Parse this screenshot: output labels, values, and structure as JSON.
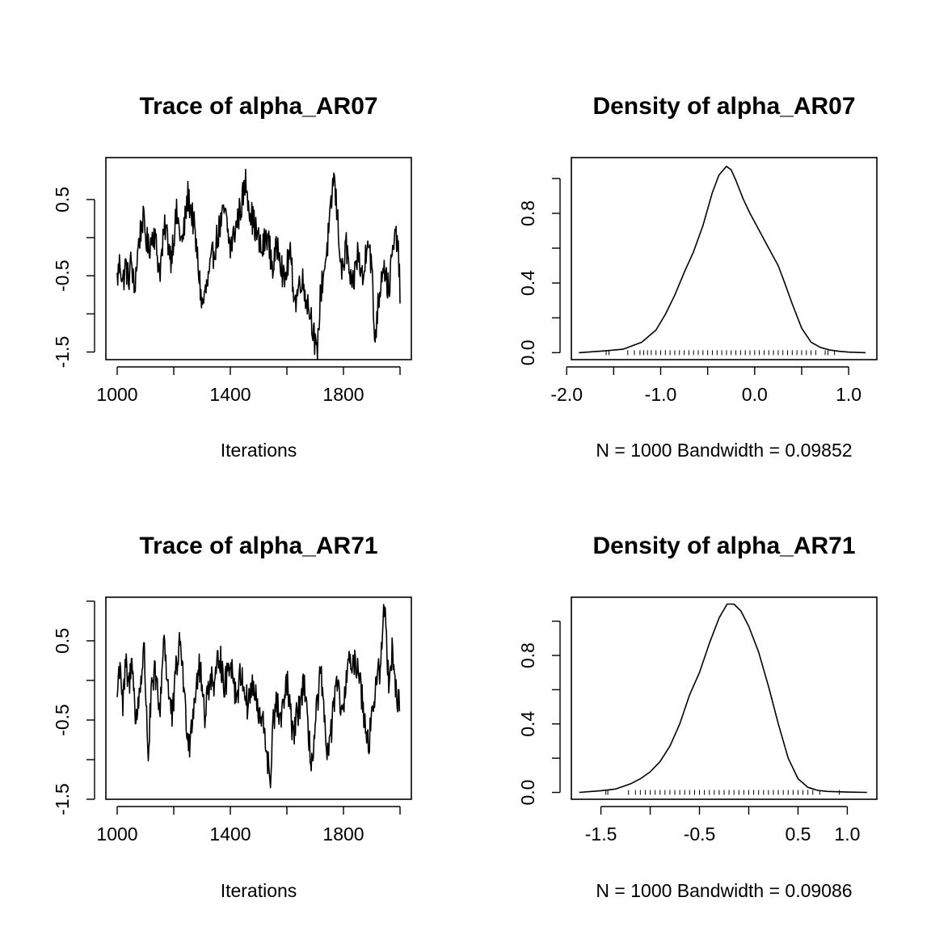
{
  "chart_data": [
    {
      "type": "line",
      "title": "Trace of alpha_AR07",
      "xlabel": "Iterations",
      "ylabel": "",
      "xlim": [
        960,
        2040
      ],
      "ylim": [
        -1.6,
        1.05
      ],
      "xticks": [
        1000,
        1200,
        1400,
        1600,
        1800,
        2000
      ],
      "xtick_labels": [
        "1000",
        "",
        "1400",
        "",
        "1800",
        ""
      ],
      "yticks": [
        -1.5,
        -1.0,
        -0.5,
        0.0,
        0.5
      ],
      "ytick_labels": [
        "-1.5",
        "",
        "-0.5",
        "",
        "0.5"
      ],
      "anchors": [
        [
          1000,
          -0.55
        ],
        [
          1010,
          -0.3
        ],
        [
          1020,
          -0.6
        ],
        [
          1030,
          -0.35
        ],
        [
          1040,
          -0.55
        ],
        [
          1050,
          -0.3
        ],
        [
          1060,
          -0.7
        ],
        [
          1075,
          -0.1
        ],
        [
          1090,
          0.25
        ],
        [
          1110,
          -0.15
        ],
        [
          1130,
          0.1
        ],
        [
          1150,
          -0.45
        ],
        [
          1170,
          0.15
        ],
        [
          1190,
          -0.25
        ],
        [
          1210,
          0.3
        ],
        [
          1230,
          -0.1
        ],
        [
          1250,
          0.55
        ],
        [
          1270,
          0.2
        ],
        [
          1290,
          -0.5
        ],
        [
          1300,
          -0.9
        ],
        [
          1320,
          -0.6
        ],
        [
          1340,
          -0.2
        ],
        [
          1360,
          0.1
        ],
        [
          1380,
          0.35
        ],
        [
          1400,
          -0.15
        ],
        [
          1420,
          0.15
        ],
        [
          1440,
          0.45
        ],
        [
          1455,
          0.75
        ],
        [
          1470,
          0.35
        ],
        [
          1490,
          0.1
        ],
        [
          1510,
          -0.2
        ],
        [
          1530,
          0.05
        ],
        [
          1550,
          -0.4
        ],
        [
          1570,
          -0.05
        ],
        [
          1590,
          -0.6
        ],
        [
          1610,
          -0.2
        ],
        [
          1630,
          -0.85
        ],
        [
          1650,
          -0.5
        ],
        [
          1670,
          -0.8
        ],
        [
          1690,
          -1.1
        ],
        [
          1705,
          -1.6
        ],
        [
          1720,
          -0.7
        ],
        [
          1740,
          -0.2
        ],
        [
          1755,
          0.3
        ],
        [
          1765,
          0.85
        ],
        [
          1780,
          0.2
        ],
        [
          1795,
          -0.5
        ],
        [
          1810,
          -0.1
        ],
        [
          1830,
          -0.75
        ],
        [
          1850,
          -0.2
        ],
        [
          1870,
          -0.6
        ],
        [
          1885,
          0.1
        ],
        [
          1900,
          -0.4
        ],
        [
          1910,
          -1.35
        ],
        [
          1925,
          -0.8
        ],
        [
          1940,
          -0.3
        ],
        [
          1960,
          -0.7
        ],
        [
          1975,
          -0.15
        ],
        [
          1990,
          0.05
        ],
        [
          2000,
          -0.7
        ]
      ]
    },
    {
      "type": "line",
      "title": "Density of alpha_AR07",
      "xlabel": "N = 1000   Bandwidth = 0.09852",
      "ylabel": "",
      "xlim": [
        -1.95,
        1.3
      ],
      "ylim": [
        -0.04,
        1.12
      ],
      "xticks": [
        -2.0,
        -1.5,
        -1.0,
        -0.5,
        0.0,
        0.5,
        1.0
      ],
      "xtick_labels": [
        "-2.0",
        "",
        "-1.0",
        "",
        "0.0",
        "",
        "1.0"
      ],
      "yticks": [
        0.0,
        0.2,
        0.4,
        0.6,
        0.8,
        1.0
      ],
      "ytick_labels": [
        "0.0",
        "",
        "0.4",
        "",
        "0.8",
        ""
      ],
      "x": [
        -1.87,
        -1.6,
        -1.4,
        -1.2,
        -1.05,
        -0.95,
        -0.85,
        -0.75,
        -0.65,
        -0.55,
        -0.45,
        -0.38,
        -0.3,
        -0.25,
        -0.2,
        -0.12,
        -0.05,
        0.05,
        0.15,
        0.25,
        0.32,
        0.4,
        0.5,
        0.6,
        0.7,
        0.8,
        0.9,
        1.0,
        1.18
      ],
      "y": [
        0.0,
        0.01,
        0.02,
        0.06,
        0.13,
        0.22,
        0.33,
        0.46,
        0.58,
        0.73,
        0.92,
        1.02,
        1.07,
        1.05,
        0.99,
        0.88,
        0.8,
        0.7,
        0.6,
        0.5,
        0.4,
        0.28,
        0.14,
        0.06,
        0.03,
        0.015,
        0.008,
        0.003,
        0.0
      ],
      "rug_x": [
        -1.58,
        -1.55,
        -1.35,
        -1.28,
        -1.22,
        -1.18,
        -1.14,
        -1.1,
        -1.05,
        -1.0,
        -0.95,
        -0.9,
        -0.85,
        -0.8,
        -0.75,
        -0.7,
        -0.65,
        -0.6,
        -0.55,
        -0.5,
        -0.45,
        -0.4,
        -0.35,
        -0.3,
        -0.25,
        -0.2,
        -0.15,
        -0.1,
        -0.05,
        0.0,
        0.05,
        0.1,
        0.15,
        0.2,
        0.25,
        0.3,
        0.35,
        0.4,
        0.45,
        0.5,
        0.55,
        0.6,
        0.65,
        0.75,
        0.78,
        0.85
      ]
    },
    {
      "type": "line",
      "title": "Trace of alpha_AR71",
      "xlabel": "Iterations",
      "ylabel": "",
      "xlim": [
        960,
        2040
      ],
      "ylim": [
        -1.5,
        1.05
      ],
      "xticks": [
        1000,
        1200,
        1400,
        1600,
        1800,
        2000
      ],
      "xtick_labels": [
        "1000",
        "",
        "1400",
        "",
        "1800",
        ""
      ],
      "yticks": [
        -1.5,
        -1.0,
        -0.5,
        0.0,
        0.5,
        1.0
      ],
      "ytick_labels": [
        "-1.5",
        "",
        "-0.5",
        "",
        "0.5",
        ""
      ],
      "anchors": [
        [
          1000,
          -0.2
        ],
        [
          1010,
          0.3
        ],
        [
          1020,
          -0.35
        ],
        [
          1030,
          0.2
        ],
        [
          1040,
          -0.1
        ],
        [
          1055,
          0.3
        ],
        [
          1065,
          -0.6
        ],
        [
          1080,
          -0.1
        ],
        [
          1095,
          0.4
        ],
        [
          1110,
          -0.95
        ],
        [
          1120,
          -0.2
        ],
        [
          1135,
          0.1
        ],
        [
          1150,
          -0.45
        ],
        [
          1165,
          0.6
        ],
        [
          1180,
          -0.1
        ],
        [
          1195,
          -0.5
        ],
        [
          1210,
          0.2
        ],
        [
          1225,
          0.5
        ],
        [
          1240,
          -0.35
        ],
        [
          1255,
          -0.8
        ],
        [
          1270,
          -0.3
        ],
        [
          1290,
          0.2
        ],
        [
          1310,
          -0.4
        ],
        [
          1330,
          0.1
        ],
        [
          1345,
          -0.15
        ],
        [
          1360,
          0.4
        ],
        [
          1380,
          -0.1
        ],
        [
          1400,
          0.3
        ],
        [
          1420,
          -0.2
        ],
        [
          1440,
          0.1
        ],
        [
          1460,
          -0.3
        ],
        [
          1480,
          -0.05
        ],
        [
          1500,
          -0.45
        ],
        [
          1520,
          -0.6
        ],
        [
          1535,
          -1.1
        ],
        [
          1540,
          -1.45
        ],
        [
          1550,
          -0.5
        ],
        [
          1565,
          -0.3
        ],
        [
          1580,
          -0.55
        ],
        [
          1600,
          0.0
        ],
        [
          1620,
          -0.7
        ],
        [
          1640,
          -0.4
        ],
        [
          1660,
          0.0
        ],
        [
          1675,
          -0.7
        ],
        [
          1690,
          -1.05
        ],
        [
          1705,
          -0.4
        ],
        [
          1720,
          0.1
        ],
        [
          1735,
          -0.7
        ],
        [
          1750,
          -0.9
        ],
        [
          1765,
          -0.3
        ],
        [
          1780,
          -0.1
        ],
        [
          1800,
          -0.5
        ],
        [
          1815,
          0.35
        ],
        [
          1830,
          0.1
        ],
        [
          1850,
          0.25
        ],
        [
          1870,
          -0.35
        ],
        [
          1890,
          -0.8
        ],
        [
          1900,
          -0.4
        ],
        [
          1915,
          -0.1
        ],
        [
          1930,
          0.2
        ],
        [
          1945,
          0.95
        ],
        [
          1960,
          0.0
        ],
        [
          1972,
          0.4
        ],
        [
          1985,
          -0.1
        ],
        [
          2000,
          -0.4
        ]
      ]
    },
    {
      "type": "line",
      "title": "Density of alpha_AR71",
      "xlabel": "N = 1000   Bandwidth = 0.09086",
      "ylabel": "",
      "xlim": [
        -1.8,
        1.3
      ],
      "ylim": [
        -0.04,
        1.14
      ],
      "xticks": [
        -1.5,
        -1.0,
        -0.5,
        0.0,
        0.5,
        1.0
      ],
      "xtick_labels": [
        "-1.5",
        "",
        "-0.5",
        "",
        "0.5",
        "1.0"
      ],
      "yticks": [
        0.0,
        0.2,
        0.4,
        0.6,
        0.8,
        1.0
      ],
      "ytick_labels": [
        "0.0",
        "",
        "0.4",
        "",
        "0.8",
        ""
      ],
      "x": [
        -1.72,
        -1.5,
        -1.35,
        -1.2,
        -1.1,
        -1.0,
        -0.9,
        -0.8,
        -0.7,
        -0.6,
        -0.5,
        -0.4,
        -0.3,
        -0.22,
        -0.15,
        -0.08,
        0.0,
        0.1,
        0.2,
        0.3,
        0.4,
        0.5,
        0.6,
        0.7,
        0.8,
        0.9,
        1.0,
        1.2
      ],
      "y": [
        0.0,
        0.01,
        0.02,
        0.05,
        0.08,
        0.12,
        0.18,
        0.27,
        0.4,
        0.57,
        0.7,
        0.87,
        1.02,
        1.1,
        1.1,
        1.06,
        0.97,
        0.82,
        0.62,
        0.4,
        0.2,
        0.08,
        0.03,
        0.012,
        0.006,
        0.004,
        0.002,
        0.0
      ],
      "rug_x": [
        -1.45,
        -1.43,
        -1.22,
        -1.15,
        -1.1,
        -1.05,
        -1.0,
        -0.95,
        -0.9,
        -0.85,
        -0.8,
        -0.75,
        -0.7,
        -0.65,
        -0.6,
        -0.55,
        -0.5,
        -0.45,
        -0.4,
        -0.35,
        -0.3,
        -0.25,
        -0.2,
        -0.15,
        -0.1,
        -0.05,
        0.0,
        0.05,
        0.1,
        0.15,
        0.2,
        0.25,
        0.3,
        0.35,
        0.4,
        0.45,
        0.5,
        0.55,
        0.6,
        0.65,
        0.72,
        0.92
      ]
    }
  ]
}
